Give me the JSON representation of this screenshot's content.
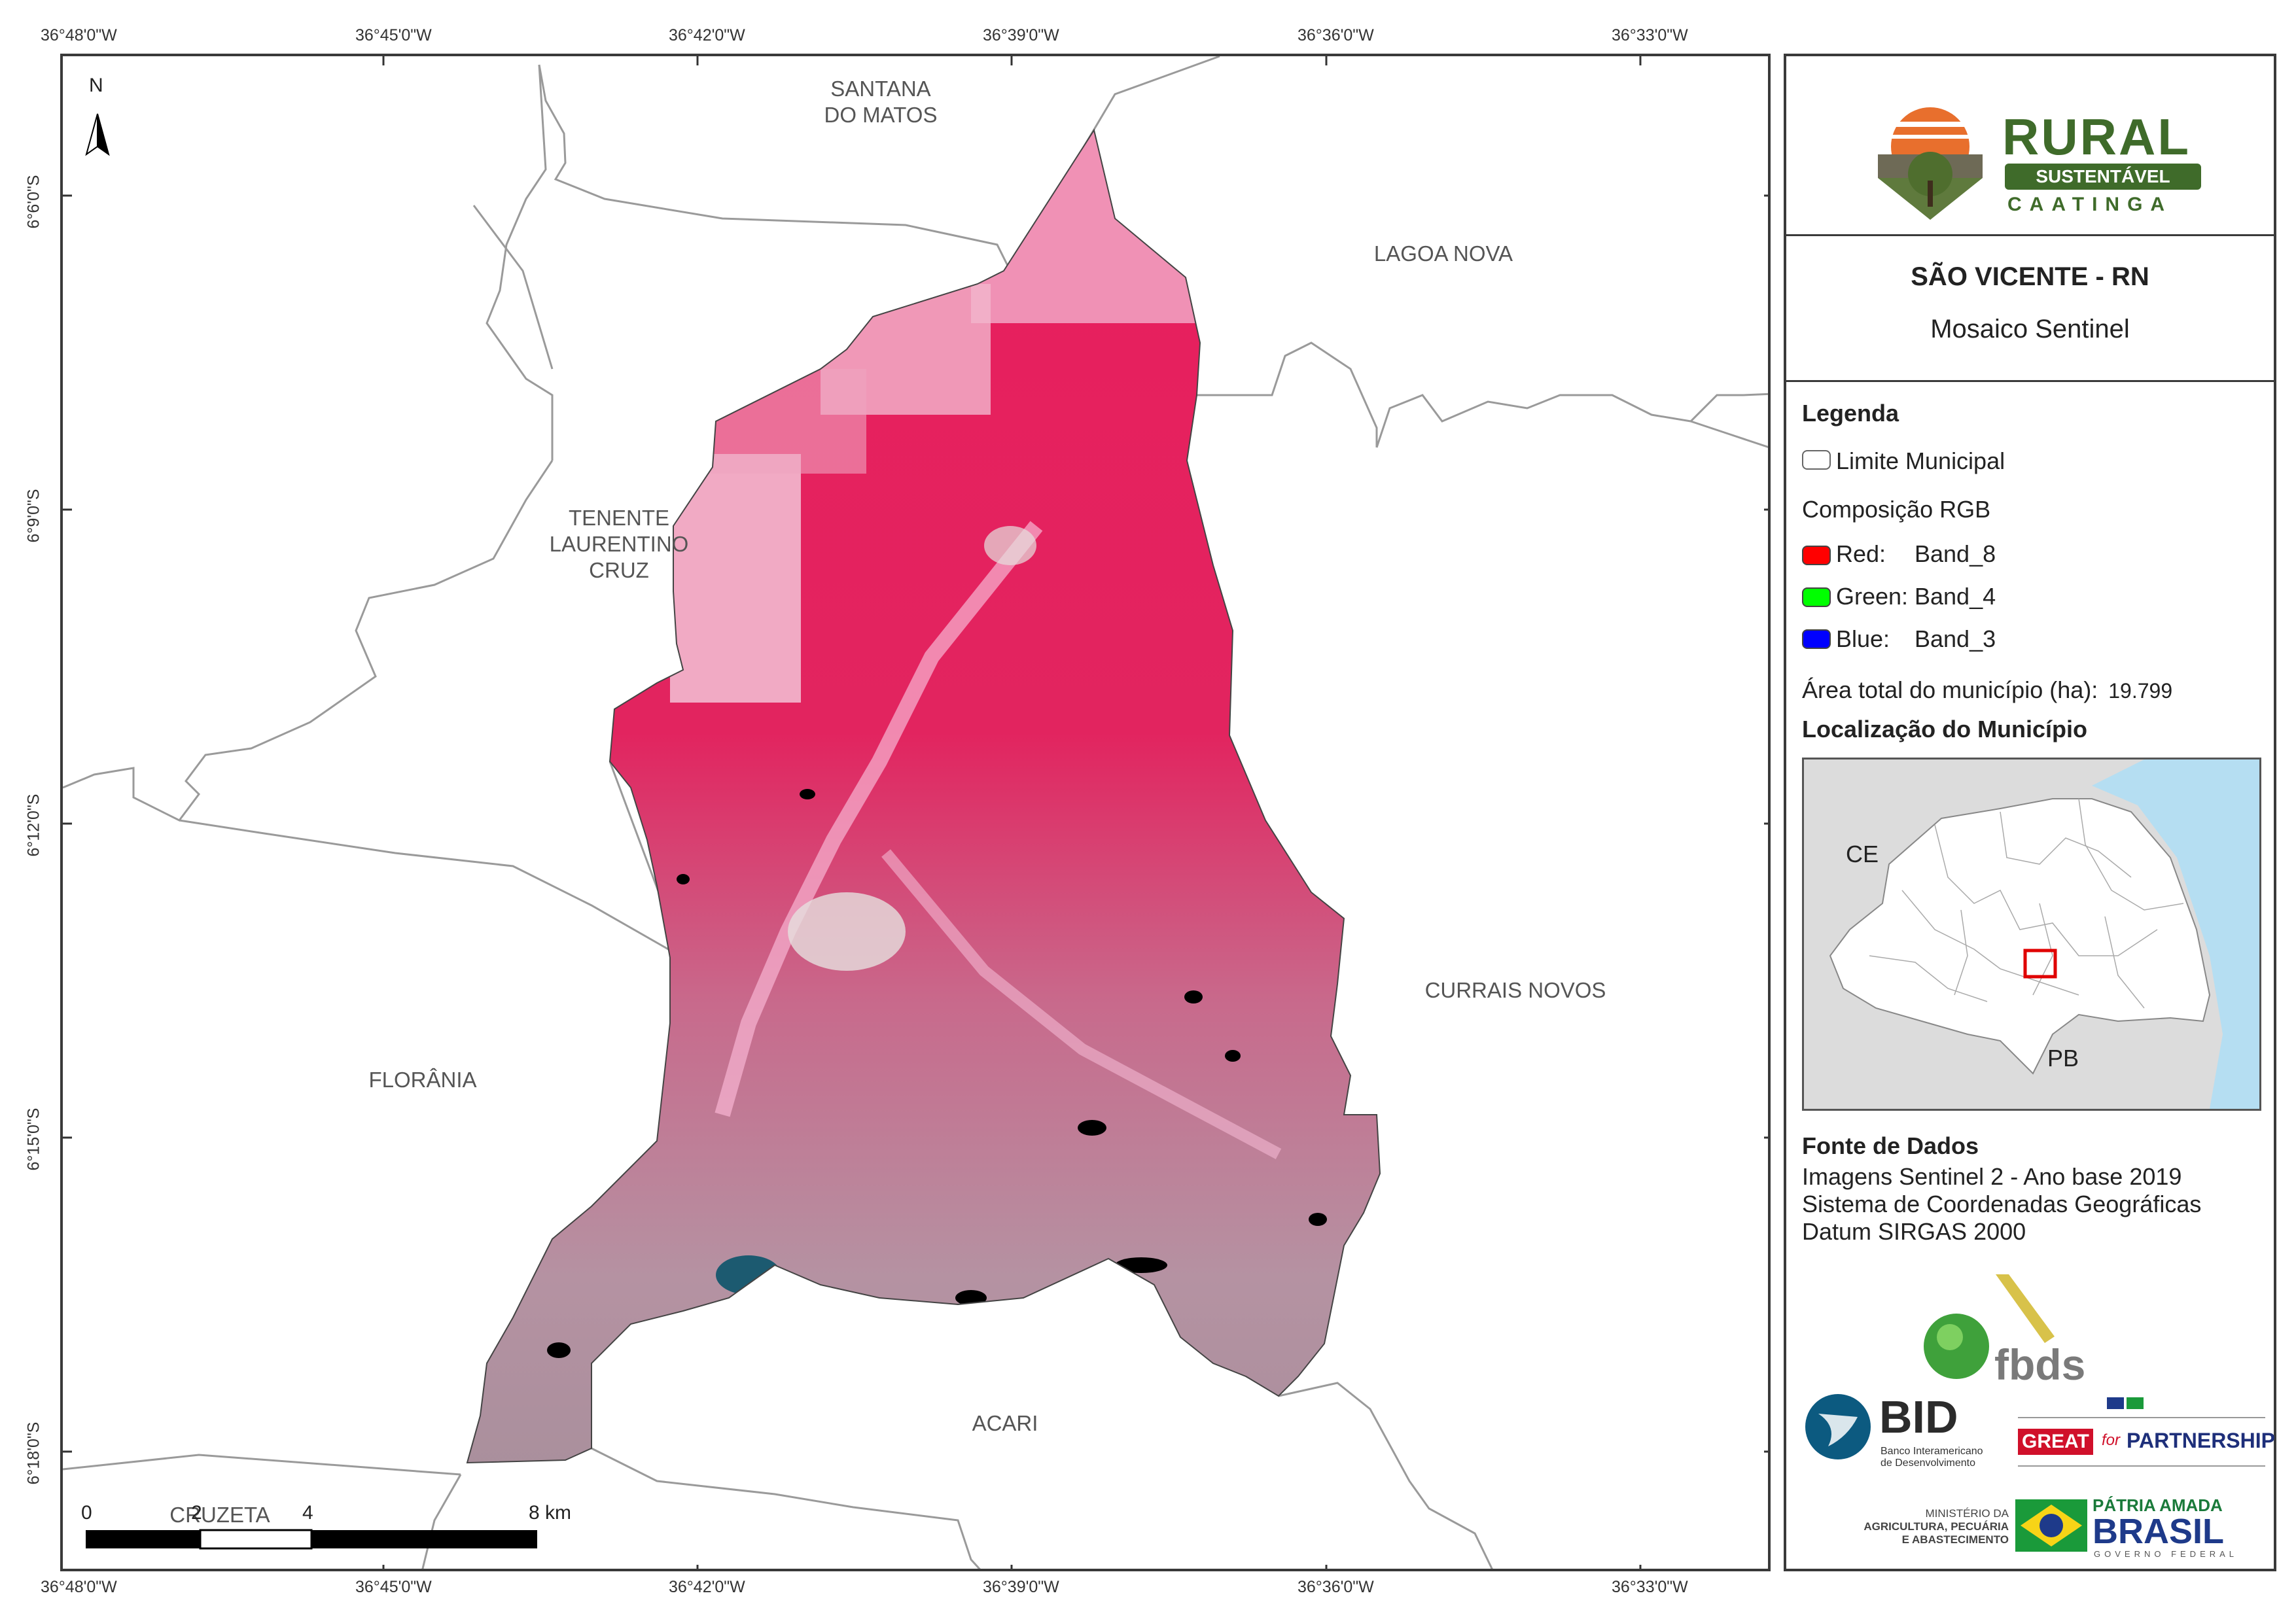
{
  "graticule": {
    "longitudes": [
      "36°48'0\"W",
      "36°45'0\"W",
      "36°42'0\"W",
      "36°39'0\"W",
      "36°36'0\"W",
      "36°33'0\"W"
    ],
    "latitudes": [
      "6°6'0\"S",
      "6°9'0\"S",
      "6°12'0\"S",
      "6°15'0\"S",
      "6°18'0\"S"
    ]
  },
  "north_arrow": {
    "label": "N"
  },
  "municipalities": {
    "santana": "SANTANA",
    "do_matos": "DO MATOS",
    "lagoa_nova": "LAGOA NOVA",
    "tenente": "TENENTE",
    "laurentino": "LAURENTINO",
    "cruz": "CRUZ",
    "currais_novos": "CURRAIS NOVOS",
    "florania": "FLORÂNIA",
    "acari": "ACARI",
    "cruzeta": "CRUZETA"
  },
  "scale_bar": {
    "ticks": [
      "0",
      "2",
      "4",
      "8 km"
    ]
  },
  "logo": {
    "rural": "RURAL",
    "sustentavel": "SUSTENTÁVEL",
    "caatinga": "CAATINGA"
  },
  "header": {
    "title": "SÃO VICENTE - RN",
    "subtitle": "Mosaico Sentinel"
  },
  "legend": {
    "title": "Legenda",
    "limit_label": "Limite Municipal",
    "rgb_title": "Composição RGB",
    "red_label": "Red:",
    "red_band": "Band_8",
    "red_color": "#ff0000",
    "green_label": "Green:",
    "green_band": "Band_4",
    "green_color": "#00ff00",
    "blue_label": "Blue:",
    "blue_band": "Band_3",
    "blue_color": "#0000ff",
    "area_label": "Área total do município (ha):",
    "area_value": "19.799"
  },
  "location": {
    "title": "Localização do Município",
    "ce": "CE",
    "pb": "PB"
  },
  "sources": {
    "title": "Fonte de Dados",
    "line1": "Imagens Sentinel 2 - Ano base 2019",
    "line2": "Sistema de Coordenadas Geográficas",
    "line3": "Datum SIRGAS 2000"
  },
  "partners": {
    "fbds": "fbds",
    "bid": "BID",
    "bid_sub1": "Banco Interamericano",
    "bid_sub2": "de Desenvolvimento",
    "great": "GREAT",
    "for": "for",
    "partnership": "PARTNERSHIP",
    "ministerio1": "MINISTÉRIO DA",
    "ministerio2": "AGRICULTURA, PECUÁRIA",
    "ministerio3": "E ABASTECIMENTO",
    "patria": "PÁTRIA AMADA",
    "brasil": "BRASIL",
    "governo": "GOVERNO FEDERAL"
  }
}
